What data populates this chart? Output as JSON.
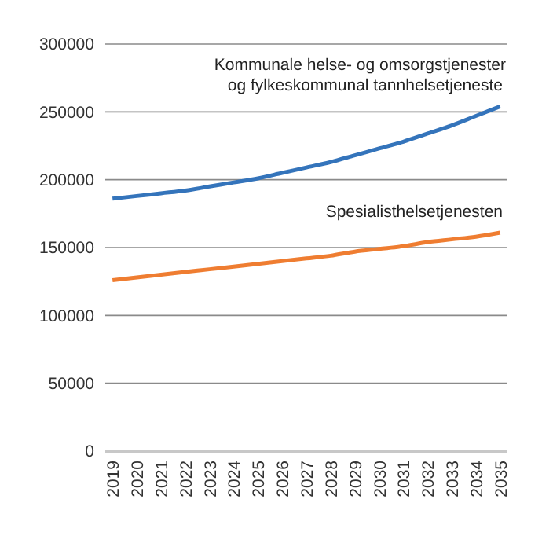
{
  "chart_data": {
    "type": "line",
    "categories": [
      "2019",
      "2020",
      "2021",
      "2022",
      "2023",
      "2024",
      "2025",
      "2026",
      "2027",
      "2028",
      "2029",
      "2030",
      "2031",
      "2032",
      "2033",
      "2034",
      "2035"
    ],
    "series": [
      {
        "name": "Kommunale helse- og omsorgstjenester og fylkeskommunal tannhelsetjeneste",
        "color": "#3474bb",
        "values": [
          186000,
          188000,
          190000,
          192000,
          195000,
          198000,
          201000,
          205000,
          209000,
          213000,
          218000,
          223000,
          228000,
          234000,
          240000,
          247000,
          254000
        ]
      },
      {
        "name": "Spesialisthelsetjenesten",
        "color": "#ef7d31",
        "values": [
          126000,
          128000,
          130000,
          132000,
          134000,
          136000,
          138000,
          140000,
          142000,
          144000,
          147000,
          149000,
          151000,
          154000,
          156000,
          158000,
          161000
        ]
      }
    ],
    "ylim": [
      0,
      300000
    ],
    "yticks": [
      0,
      50000,
      100000,
      150000,
      200000,
      250000,
      300000
    ],
    "grid": "y",
    "marker": "none",
    "line_style": "solid"
  }
}
